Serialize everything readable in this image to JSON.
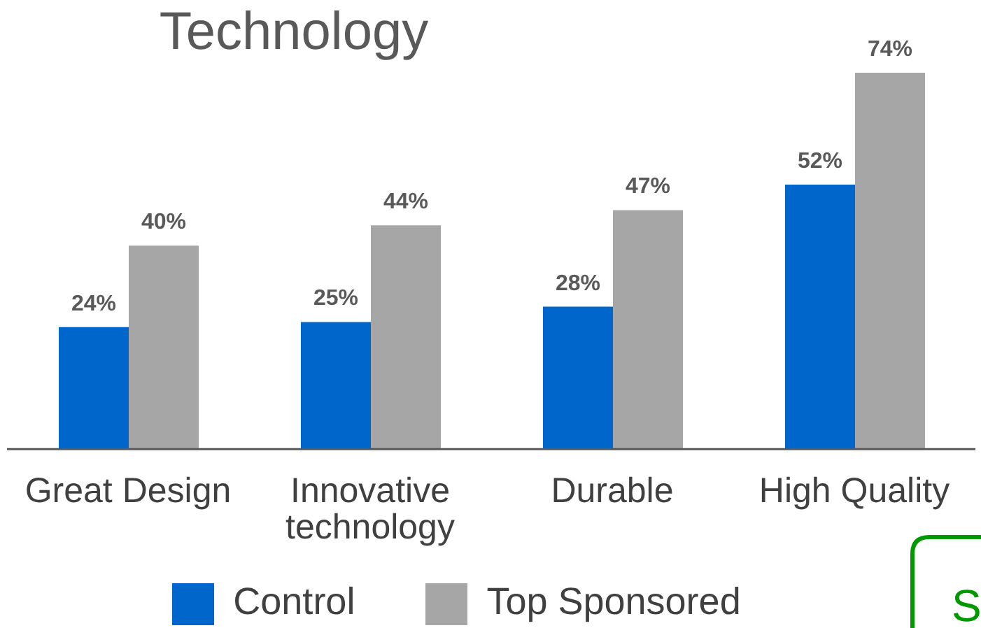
{
  "chart_data": {
    "type": "bar",
    "title": "Technology",
    "categories": [
      "Great Design",
      "Innovative technology",
      "Durable",
      "High Quality"
    ],
    "series": [
      {
        "name": "Control",
        "color": "#0066cc",
        "values": [
          24,
          25,
          28,
          52
        ],
        "value_labels": [
          "24%",
          "25%",
          "28%",
          "52%"
        ]
      },
      {
        "name": "Top Sponsored",
        "color": "#a6a6a6",
        "values": [
          40,
          44,
          47,
          74
        ],
        "value_labels": [
          "40%",
          "44%",
          "47%",
          "74%"
        ]
      }
    ],
    "legend": "bottom",
    "annotations": [
      "S"
    ]
  }
}
